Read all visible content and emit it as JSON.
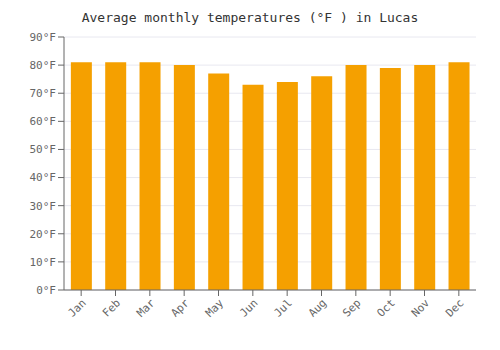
{
  "chart_data": {
    "type": "bar",
    "title": "Average monthly temperatures (°F ) in Lucas",
    "categories": [
      "Jan",
      "Feb",
      "Mar",
      "Apr",
      "May",
      "Jun",
      "Jul",
      "Aug",
      "Sep",
      "Oct",
      "Nov",
      "Dec"
    ],
    "values": [
      81,
      81,
      81,
      80,
      77,
      73,
      74,
      76,
      80,
      79,
      80,
      81
    ],
    "color": "#F5A000",
    "ylim": [
      0,
      90
    ],
    "yticks": [
      {
        "value": 0,
        "label": "0°F"
      },
      {
        "value": 10,
        "label": "10°F"
      },
      {
        "value": 20,
        "label": "20°F"
      },
      {
        "value": 30,
        "label": "30°F"
      },
      {
        "value": 40,
        "label": "40°F"
      },
      {
        "value": 50,
        "label": "50°F"
      },
      {
        "value": 60,
        "label": "60°F"
      },
      {
        "value": 70,
        "label": "70°F"
      },
      {
        "value": 80,
        "label": "80°F"
      },
      {
        "value": 90,
        "label": "90°F"
      }
    ],
    "grid": true
  }
}
